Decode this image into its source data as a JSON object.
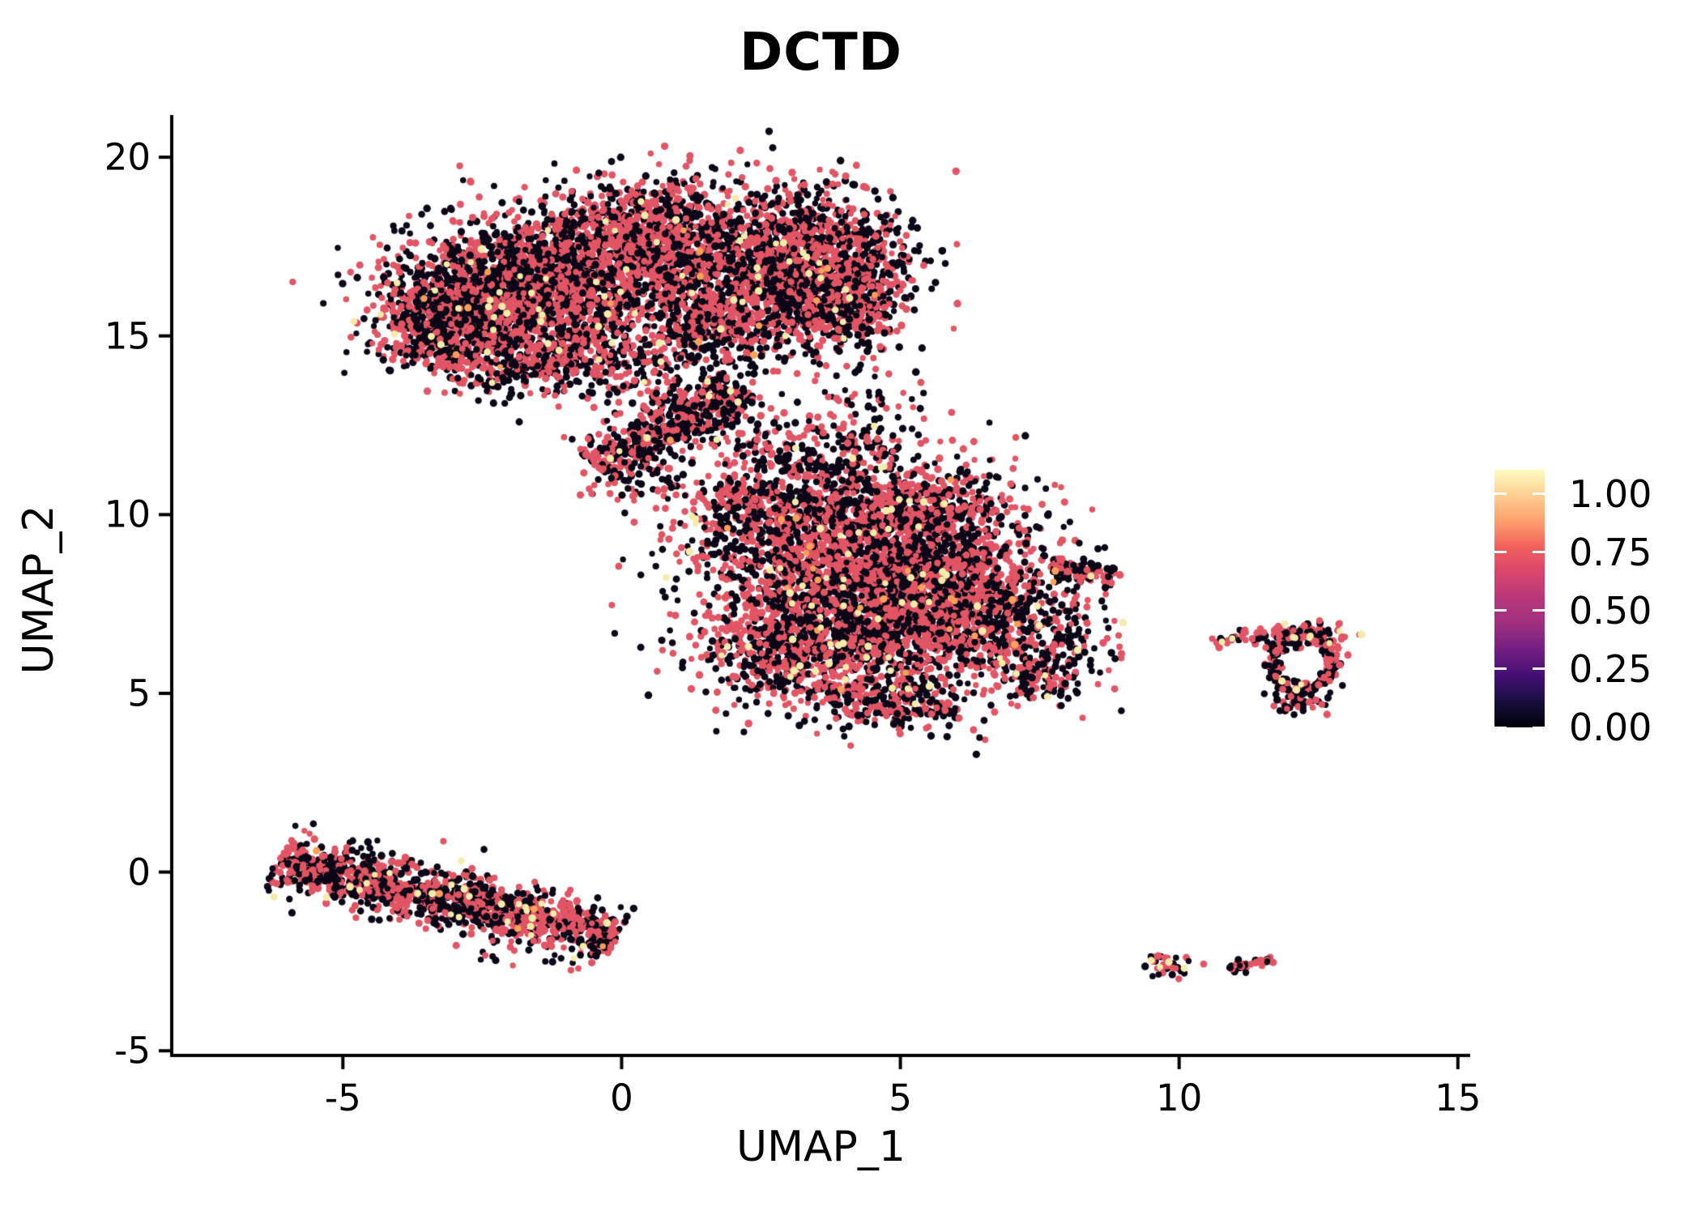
{
  "figure": {
    "background": "#FFFFFF",
    "axis_color": "#000000"
  },
  "chart_data": {
    "type": "scatter",
    "title": "DCTD",
    "xlabel": "UMAP_1",
    "ylabel": "UMAP_2",
    "xlim": [
      -8.07,
      15.22
    ],
    "ylim": [
      -5.13,
      21.18
    ],
    "grid": false,
    "xticks": {
      "values": [
        -5,
        0,
        5,
        10,
        15
      ],
      "labels": [
        "-5",
        "0",
        "5",
        "10",
        "15"
      ]
    },
    "yticks": {
      "values": [
        -5,
        0,
        5,
        10,
        15,
        20
      ],
      "labels": [
        "-5",
        "0",
        "5",
        "10",
        "15",
        "20"
      ]
    },
    "legend": {
      "position": "right",
      "colormap": "magma",
      "bar_value_max": 1.104,
      "ticks": [
        {
          "value": 1.0,
          "label": "1.00"
        },
        {
          "value": 0.75,
          "label": "0.75"
        },
        {
          "value": 0.5,
          "label": "0.50"
        },
        {
          "value": 0.25,
          "label": "0.25"
        },
        {
          "value": 0.0,
          "label": "0.00"
        }
      ],
      "gradient_stops": [
        {
          "offset": 0.0,
          "color": "#000004"
        },
        {
          "offset": 0.1,
          "color": "#180F3E"
        },
        {
          "offset": 0.2,
          "color": "#440F76"
        },
        {
          "offset": 0.3,
          "color": "#721F81"
        },
        {
          "offset": 0.4,
          "color": "#9E2F7F"
        },
        {
          "offset": 0.5,
          "color": "#B73779"
        },
        {
          "offset": 0.6,
          "color": "#D8456C"
        },
        {
          "offset": 0.7,
          "color": "#F1605D"
        },
        {
          "offset": 0.8,
          "color": "#FE9F6D"
        },
        {
          "offset": 0.9,
          "color": "#FECE91"
        },
        {
          "offset": 1.0,
          "color": "#FCFDBF"
        }
      ]
    },
    "point_palette": {
      "zero": "#0C0716",
      "mid": "#E15565",
      "yellow": "#F5ECAB",
      "orange": "#F9A05B"
    },
    "point_radius_px": 4.1,
    "default_color_weights": [
      0.49,
      0.493,
      0.013,
      0.004
    ],
    "clusters": [
      {
        "name": "top-main",
        "type": "gauss",
        "c": [
          -1.8,
          16.2
        ],
        "sx": 1.15,
        "sy": 1.0,
        "n": 2000
      },
      {
        "name": "top-left-lobe",
        "type": "gauss",
        "c": [
          -3.05,
          15.35
        ],
        "sx": 0.7,
        "sy": 0.65,
        "n": 600
      },
      {
        "name": "top-upper-mid",
        "type": "gauss",
        "c": [
          0.4,
          17.7
        ],
        "sx": 1.0,
        "sy": 0.85,
        "n": 1200
      },
      {
        "name": "top-right-lobe",
        "type": "gauss",
        "c": [
          3.2,
          17.0
        ],
        "sx": 0.95,
        "sy": 1.05,
        "n": 1500
      },
      {
        "name": "top-right-edge",
        "type": "gauss",
        "c": [
          4.0,
          16.0
        ],
        "sx": 0.55,
        "sy": 0.7,
        "n": 350
      },
      {
        "name": "top-center-join",
        "type": "gauss",
        "c": [
          1.7,
          15.5
        ],
        "sx": 0.8,
        "sy": 0.8,
        "n": 500
      },
      {
        "name": "top-lower-edge",
        "type": "gauss",
        "c": [
          -0.7,
          14.4
        ],
        "sx": 0.9,
        "sy": 0.5,
        "n": 300
      },
      {
        "name": "top-lower-tail",
        "type": "gauss",
        "c": [
          -2.1,
          13.8
        ],
        "sx": 0.45,
        "sy": 0.3,
        "n": 60,
        "weights": [
          0.6,
          0.39,
          0.01,
          0
        ]
      },
      {
        "name": "bridge-band",
        "type": "band",
        "a": [
          -0.5,
          11.4
        ],
        "b": [
          2.2,
          13.5
        ],
        "sw": 0.3,
        "n": 420
      },
      {
        "name": "bridge-scatter-1",
        "type": "gauss",
        "c": [
          1.3,
          12.9
        ],
        "sx": 0.9,
        "sy": 0.7,
        "n": 170,
        "weights": [
          0.58,
          0.41,
          0.01,
          0
        ]
      },
      {
        "name": "bridge-scatter-2",
        "type": "gauss",
        "c": [
          3.1,
          11.6
        ],
        "sx": 0.8,
        "sy": 0.6,
        "n": 150,
        "weights": [
          0.55,
          0.44,
          0.01,
          0
        ]
      },
      {
        "name": "bridge-tip",
        "type": "gauss",
        "c": [
          0.2,
          10.9
        ],
        "sx": 0.45,
        "sy": 0.4,
        "n": 60,
        "weights": [
          0.55,
          0.44,
          0.01,
          0
        ]
      },
      {
        "name": "bridge-right-trickle",
        "type": "gauss",
        "c": [
          4.35,
          12.4
        ],
        "sx": 0.5,
        "sy": 0.9,
        "n": 110,
        "weights": [
          0.6,
          0.39,
          0.01,
          0
        ]
      },
      {
        "name": "mid-main",
        "type": "gauss",
        "c": [
          4.2,
          8.8
        ],
        "sx": 1.4,
        "sy": 1.3,
        "n": 2300
      },
      {
        "name": "mid-right",
        "type": "gauss",
        "c": [
          5.9,
          7.2
        ],
        "sx": 1.1,
        "sy": 1.0,
        "n": 1300
      },
      {
        "name": "mid-left-low",
        "type": "gauss",
        "c": [
          3.2,
          6.4
        ],
        "sx": 0.95,
        "sy": 0.85,
        "n": 800
      },
      {
        "name": "mid-top",
        "type": "gauss",
        "c": [
          5.3,
          10.2
        ],
        "sx": 1.0,
        "sy": 0.55,
        "n": 400
      },
      {
        "name": "mid-top-left",
        "type": "gauss",
        "c": [
          2.4,
          10.3
        ],
        "sx": 0.6,
        "sy": 0.45,
        "n": 150
      },
      {
        "name": "mid-right-tip",
        "type": "band",
        "a": [
          7.7,
          8.5
        ],
        "b": [
          8.85,
          8.3
        ],
        "sw": 0.16,
        "n": 90
      },
      {
        "name": "mid-bottom-right",
        "type": "gauss",
        "c": [
          7.5,
          5.7
        ],
        "sx": 0.5,
        "sy": 0.5,
        "n": 150
      },
      {
        "name": "mid-bottom-edge",
        "type": "gauss",
        "c": [
          4.8,
          4.7
        ],
        "sx": 0.75,
        "sy": 0.4,
        "n": 250
      },
      {
        "name": "mid-right-scatter",
        "type": "gauss",
        "c": [
          8.1,
          6.9
        ],
        "sx": 0.3,
        "sy": 0.4,
        "n": 30,
        "weights": [
          0.7,
          0.3,
          0,
          0
        ]
      },
      {
        "name": "mid-lone-pair",
        "type": "points",
        "pts": [
          [
            6.52,
            3.7,
            "mid"
          ],
          [
            6.42,
            3.76,
            "zero"
          ]
        ]
      },
      {
        "name": "strip-core",
        "type": "band",
        "a": [
          -6.2,
          0.3
        ],
        "b": [
          -0.05,
          -1.8
        ],
        "sw": 0.34,
        "n": 1250,
        "weights": [
          0.45,
          0.52,
          0.025,
          0.005
        ]
      },
      {
        "name": "strip-halo",
        "type": "band",
        "a": [
          -6.0,
          0.2
        ],
        "b": [
          0.1,
          -1.85
        ],
        "sw": 0.7,
        "n": 140,
        "weights": [
          0.62,
          0.37,
          0.01,
          0
        ]
      },
      {
        "name": "island-ring",
        "type": "ring",
        "c": [
          12.2,
          5.9
        ],
        "rx": 0.55,
        "ry": 0.75,
        "sr": 0.13,
        "n": 220,
        "weights": [
          0.56,
          0.42,
          0.02,
          0
        ]
      },
      {
        "name": "island-top-cap",
        "type": "gauss",
        "c": [
          12.4,
          6.6
        ],
        "sx": 0.42,
        "sy": 0.2,
        "n": 80,
        "weights": [
          0.32,
          0.56,
          0.12,
          0
        ]
      },
      {
        "name": "island-bottom",
        "type": "gauss",
        "c": [
          12.1,
          4.8
        ],
        "sx": 0.28,
        "sy": 0.18,
        "n": 45,
        "weights": [
          0.55,
          0.45,
          0,
          0
        ]
      },
      {
        "name": "island-left-tail",
        "type": "band",
        "a": [
          10.6,
          6.45
        ],
        "b": [
          11.6,
          6.72
        ],
        "sw": 0.1,
        "n": 32,
        "weights": [
          0.5,
          0.45,
          0.05,
          0
        ]
      },
      {
        "name": "mini-left",
        "type": "gauss",
        "c": [
          9.8,
          -2.62
        ],
        "sx": 0.25,
        "sy": 0.17,
        "n": 40,
        "weights": [
          0.42,
          0.53,
          0.05,
          0
        ]
      },
      {
        "name": "mini-lone-dot",
        "type": "points",
        "pts": [
          [
            10.44,
            -2.57,
            "mid"
          ]
        ]
      },
      {
        "name": "mini-right",
        "type": "band",
        "a": [
          10.88,
          -2.72
        ],
        "b": [
          11.7,
          -2.42
        ],
        "sw": 0.08,
        "n": 32,
        "weights": [
          0.4,
          0.55,
          0.05,
          0
        ]
      }
    ]
  }
}
